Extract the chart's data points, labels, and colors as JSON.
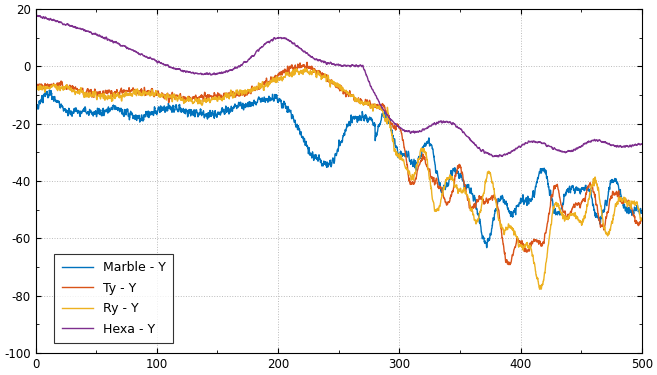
{
  "title": "",
  "xlabel": "",
  "ylabel": "",
  "xlim": [
    0,
    500
  ],
  "ylim": [
    -100,
    20
  ],
  "yticks": [
    -100,
    -80,
    -60,
    -40,
    -20,
    0,
    20
  ],
  "xticks": [
    0,
    100,
    200,
    300,
    400,
    500
  ],
  "colors": {
    "marble_y": "#0072BD",
    "ty_y": "#D95319",
    "ry_y": "#EDB120",
    "hexa_y": "#7E2F8E"
  },
  "legend_labels": [
    "Marble - Y",
    "Ty - Y",
    "Ry - Y",
    "Hexa - Y"
  ],
  "background_color": "#ffffff",
  "grid_color": "#c0c0c0"
}
